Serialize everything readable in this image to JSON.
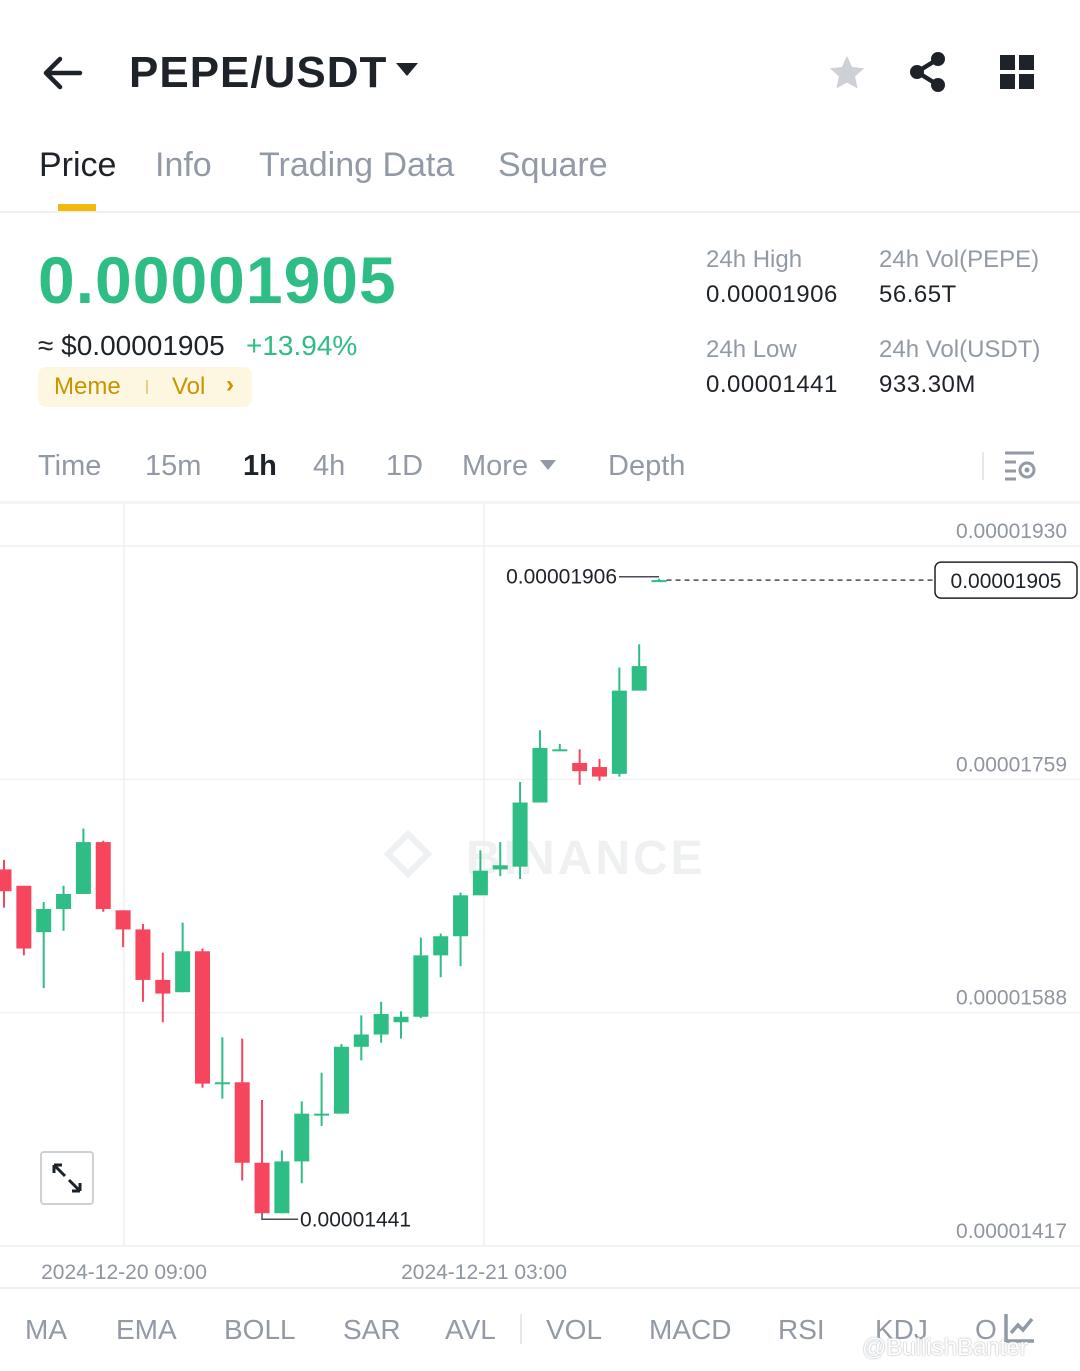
{
  "header": {
    "pair": "PEPE/USDT",
    "icons": [
      "back-arrow-icon",
      "caret-down-icon",
      "star-icon",
      "share-icon",
      "grid-icon"
    ]
  },
  "tabs": [
    {
      "label": "Price",
      "active": true
    },
    {
      "label": "Info"
    },
    {
      "label": "Trading Data"
    },
    {
      "label": "Square"
    }
  ],
  "price": {
    "last": "0.00001905",
    "approx": "≈ $0.00001905",
    "change": "+13.94%",
    "tags": [
      "Meme",
      "Vol"
    ],
    "stats": {
      "high_label": "24h High",
      "high_value": "0.00001906",
      "low_label": "24h Low",
      "low_value": "0.00001441",
      "vol_base_label": "24h Vol(PEPE)",
      "vol_base_value": "56.65T",
      "vol_quote_label": "24h Vol(USDT)",
      "vol_quote_value": "933.30M"
    }
  },
  "timeframes": [
    "Time",
    "15m",
    "1h",
    "4h",
    "1D",
    "More",
    "Depth"
  ],
  "active_timeframe": "1h",
  "indicators": [
    "MA",
    "EMA",
    "BOLL",
    "SAR",
    "AVL",
    "VOL",
    "MACD",
    "RSI",
    "KDJ",
    "O"
  ],
  "watermark": "@BullishBanter",
  "colors": {
    "up": "#2ebd85",
    "down": "#f6465d",
    "accent": "#f0b90b",
    "muted": "#929aa5"
  },
  "chart_data": {
    "type": "candlestick",
    "interval": "1h",
    "chart_watermark": "BINANCE",
    "y_ticks": [
      "0.00001930",
      "0.00001759",
      "0.00001588",
      "0.00001417"
    ],
    "ylim": [
      1.417e-05,
      1.93e-05
    ],
    "x_ticks": [
      "2024-12-20 09:00",
      "2024-12-21 03:00"
    ],
    "last_price_label": "0.00001905",
    "high_marker": "0.00001906",
    "low_marker": "0.00001441",
    "grid": true,
    "candles": [
      {
        "o": 1.693e-05,
        "h": 1.7e-05,
        "l": 1.665e-05,
        "c": 1.677e-05
      },
      {
        "o": 1.681e-05,
        "h": 1.681e-05,
        "l": 1.63e-05,
        "c": 1.635e-05
      },
      {
        "o": 1.647e-05,
        "h": 1.669e-05,
        "l": 1.606e-05,
        "c": 1.664e-05
      },
      {
        "o": 1.664e-05,
        "h": 1.681e-05,
        "l": 1.648e-05,
        "c": 1.675e-05
      },
      {
        "o": 1.675e-05,
        "h": 1.723e-05,
        "l": 1.675e-05,
        "c": 1.713e-05
      },
      {
        "o": 1.713e-05,
        "h": 1.714e-05,
        "l": 1.662e-05,
        "c": 1.664e-05
      },
      {
        "o": 1.663e-05,
        "h": 1.663e-05,
        "l": 1.636e-05,
        "c": 1.649e-05
      },
      {
        "o": 1.649e-05,
        "h": 1.653e-05,
        "l": 1.596e-05,
        "c": 1.612e-05
      },
      {
        "o": 1.612e-05,
        "h": 1.632e-05,
        "l": 1.581e-05,
        "c": 1.602e-05
      },
      {
        "o": 1.603e-05,
        "h": 1.654e-05,
        "l": 1.603e-05,
        "c": 1.633e-05
      },
      {
        "o": 1.633e-05,
        "h": 1.635e-05,
        "l": 1.533e-05,
        "c": 1.536e-05
      },
      {
        "o": 1.537e-05,
        "h": 1.57e-05,
        "l": 1.525e-05,
        "c": 1.537e-05
      },
      {
        "o": 1.537e-05,
        "h": 1.569e-05,
        "l": 1.465e-05,
        "c": 1.478e-05
      },
      {
        "o": 1.478e-05,
        "h": 1.524e-05,
        "l": 1.441e-05,
        "c": 1.441e-05
      },
      {
        "o": 1.441e-05,
        "h": 1.487e-05,
        "l": 1.441e-05,
        "c": 1.479e-05
      },
      {
        "o": 1.479e-05,
        "h": 1.523e-05,
        "l": 1.463e-05,
        "c": 1.514e-05
      },
      {
        "o": 1.514e-05,
        "h": 1.544e-05,
        "l": 1.505e-05,
        "c": 1.514e-05
      },
      {
        "o": 1.514e-05,
        "h": 1.565e-05,
        "l": 1.514e-05,
        "c": 1.563e-05
      },
      {
        "o": 1.563e-05,
        "h": 1.586e-05,
        "l": 1.553e-05,
        "c": 1.572e-05
      },
      {
        "o": 1.572e-05,
        "h": 1.596e-05,
        "l": 1.566e-05,
        "c": 1.587e-05
      },
      {
        "o": 1.581e-05,
        "h": 1.589e-05,
        "l": 1.569e-05,
        "c": 1.585e-05
      },
      {
        "o": 1.585e-05,
        "h": 1.643e-05,
        "l": 1.584e-05,
        "c": 1.63e-05
      },
      {
        "o": 1.63e-05,
        "h": 1.646e-05,
        "l": 1.614e-05,
        "c": 1.644e-05
      },
      {
        "o": 1.644e-05,
        "h": 1.676e-05,
        "l": 1.622e-05,
        "c": 1.674e-05
      },
      {
        "o": 1.674e-05,
        "h": 1.707e-05,
        "l": 1.674e-05,
        "c": 1.692e-05
      },
      {
        "o": 1.693e-05,
        "h": 1.713e-05,
        "l": 1.688e-05,
        "c": 1.696e-05
      },
      {
        "o": 1.695e-05,
        "h": 1.757e-05,
        "l": 1.686e-05,
        "c": 1.742e-05
      },
      {
        "o": 1.742e-05,
        "h": 1.795e-05,
        "l": 1.742e-05,
        "c": 1.782e-05
      },
      {
        "o": 1.781e-05,
        "h": 1.785e-05,
        "l": 1.78e-05,
        "c": 1.781e-05
      },
      {
        "o": 1.771e-05,
        "h": 1.781e-05,
        "l": 1.755e-05,
        "c": 1.765e-05
      },
      {
        "o": 1.768e-05,
        "h": 1.774e-05,
        "l": 1.758e-05,
        "c": 1.761e-05
      },
      {
        "o": 1.763e-05,
        "h": 1.841e-05,
        "l": 1.761e-05,
        "c": 1.824e-05
      },
      {
        "o": 1.824e-05,
        "h": 1.858e-05,
        "l": 1.829e-05,
        "c": 1.842e-05
      },
      {
        "o": 1.904e-05,
        "h": 1.906e-05,
        "l": 1.904e-05,
        "c": 1.905e-05
      }
    ]
  }
}
